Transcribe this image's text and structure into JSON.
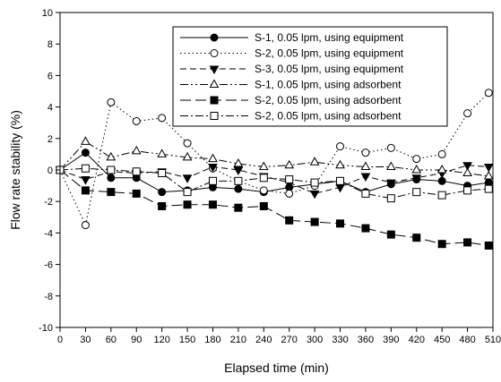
{
  "chart_data": {
    "type": "line",
    "xlabel": "Elapsed time (min)",
    "ylabel": "Flow rate stability (%)",
    "xlim": [
      0,
      510
    ],
    "ylim": [
      -10,
      10
    ],
    "xticks": [
      0,
      30,
      60,
      90,
      120,
      150,
      180,
      210,
      240,
      270,
      300,
      330,
      360,
      390,
      420,
      450,
      480,
      510
    ],
    "yticks": [
      -10,
      -8,
      -6,
      -4,
      -2,
      0,
      2,
      4,
      6,
      8,
      10
    ],
    "grid": false,
    "legend_position": "top-right",
    "x": [
      0,
      30,
      60,
      90,
      120,
      150,
      180,
      210,
      240,
      270,
      300,
      330,
      360,
      390,
      420,
      450,
      480,
      505
    ],
    "series": [
      {
        "name": "S-1, 0.05 lpm, using equipment",
        "marker": "filled-circle",
        "dash": "solid",
        "values": [
          0,
          1.1,
          -0.5,
          -0.5,
          -1.4,
          -1.3,
          -1.1,
          -1.2,
          -1.4,
          -1.1,
          -0.9,
          -0.7,
          -1.4,
          -0.9,
          -0.6,
          -0.7,
          -1.0,
          -0.8
        ]
      },
      {
        "name": "S-2, 0.05 lpm, using equipment",
        "marker": "open-circle",
        "dash": "dotted",
        "values": [
          0,
          -3.5,
          4.3,
          3.1,
          3.3,
          1.7,
          0.1,
          -0.7,
          -1.3,
          -1.5,
          -1.0,
          1.5,
          1.1,
          1.4,
          0.7,
          1.0,
          3.6,
          4.9
        ]
      },
      {
        "name": "S-3, 0.05 lpm, using equipment",
        "marker": "filled-triangle-down",
        "dash": "dashed",
        "values": [
          0,
          -0.6,
          -0.1,
          -0.2,
          -0.1,
          -0.5,
          0.2,
          0.0,
          -0.4,
          -0.8,
          -1.5,
          -1.1,
          -0.4,
          -0.8,
          -0.5,
          -0.2,
          0.3,
          0.2
        ]
      },
      {
        "name": "S-1, 0.05 lpm, using adsorbent",
        "marker": "open-triangle-up",
        "dash": "dash-dot-dot",
        "values": [
          0,
          1.8,
          0.8,
          1.2,
          1.0,
          0.8,
          0.7,
          0.4,
          0.2,
          0.3,
          0.5,
          0.3,
          0.2,
          0.2,
          0.0,
          0.0,
          -0.2,
          -0.4
        ]
      },
      {
        "name": "S-2, 0.05 lpm, using adsorbent",
        "marker": "filled-square",
        "dash": "long-dash",
        "values": [
          0,
          -1.3,
          -1.4,
          -1.5,
          -2.3,
          -2.2,
          -2.2,
          -2.4,
          -2.3,
          -3.2,
          -3.3,
          -3.4,
          -3.7,
          -4.1,
          -4.3,
          -4.7,
          -4.6,
          -4.8
        ]
      },
      {
        "name": "S-2, 0.05 lpm, using adsorbent",
        "marker": "open-square",
        "dash": "dash-dot",
        "values": [
          0,
          0.1,
          0.0,
          -0.1,
          -0.2,
          -1.4,
          -0.7,
          -0.7,
          -0.5,
          -0.6,
          -0.8,
          -0.7,
          -1.5,
          -1.8,
          -1.4,
          -1.6,
          -1.3,
          -1.2
        ]
      }
    ]
  }
}
